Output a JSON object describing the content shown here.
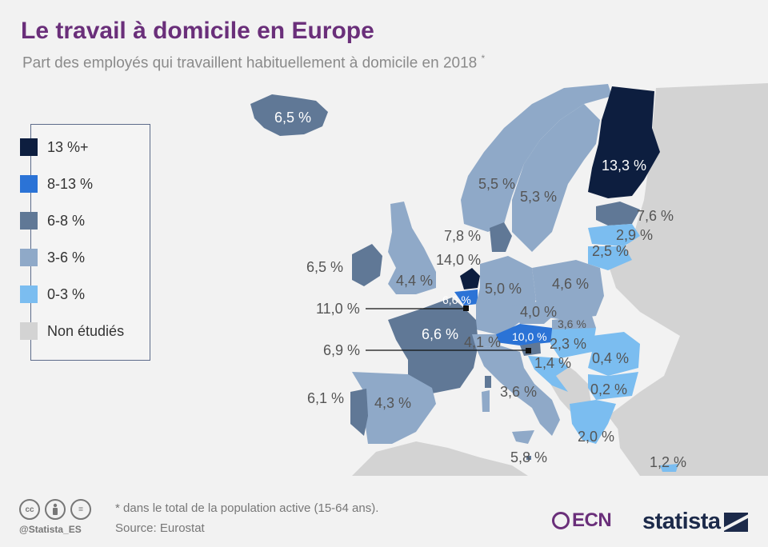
{
  "header": {
    "title": "Le travail à domicile en Europe",
    "subtitle": "Part des employés qui travaillent habituellement à domicile en 2018",
    "subtitle_mark": "*"
  },
  "legend": {
    "items": [
      {
        "label": "13 %+",
        "color": "#0d1e3f"
      },
      {
        "label": "8-13 %",
        "color": "#2b73d6"
      },
      {
        "label": "6-8 %",
        "color": "#607896"
      },
      {
        "label": "3-6 %",
        "color": "#8fa9c8"
      },
      {
        "label": "0-3 %",
        "color": "#7bbdf0"
      },
      {
        "label": "Non étudiés",
        "color": "#d3d3d3"
      }
    ]
  },
  "map_labels": {
    "iceland": "6,5 %",
    "finland": "13,3 %",
    "norway": "5,5 %",
    "sweden": "5,3 %",
    "estonia": "7,6 %",
    "latvia": "2,9 %",
    "lithuania": "2,5 %",
    "denmark": "7,8 %",
    "netherlands": "14,0 %",
    "ireland": "6,5 %",
    "uk": "4,4 %",
    "germany": "5,0 %",
    "poland": "4,6 %",
    "belgium": "6,6 %",
    "luxembourg": "11,0 %",
    "czechia": "4,0 %",
    "slovakia": "3,6 %",
    "austria": "10,0 %",
    "france": "6,6 %",
    "switzerland": "4,1 %",
    "hungary": "2,3 %",
    "slovenia": "6,9 %",
    "croatia": "1,4 %",
    "romania": "0,4 %",
    "bulgaria": "0,2 %",
    "italy": "3,6 %",
    "portugal": "6,1 %",
    "spain": "4,3 %",
    "greece": "2,0 %",
    "malta": "5,8 %",
    "cyprus": "1,2 %"
  },
  "footer": {
    "note": "* dans le total de la population active (15-64 ans).",
    "source": "Source: Eurostat",
    "handle": "@Statista_ES",
    "cc_icons": [
      "cc",
      "by",
      "="
    ],
    "ecn_logo": "ECN",
    "statista_logo": "statista"
  }
}
